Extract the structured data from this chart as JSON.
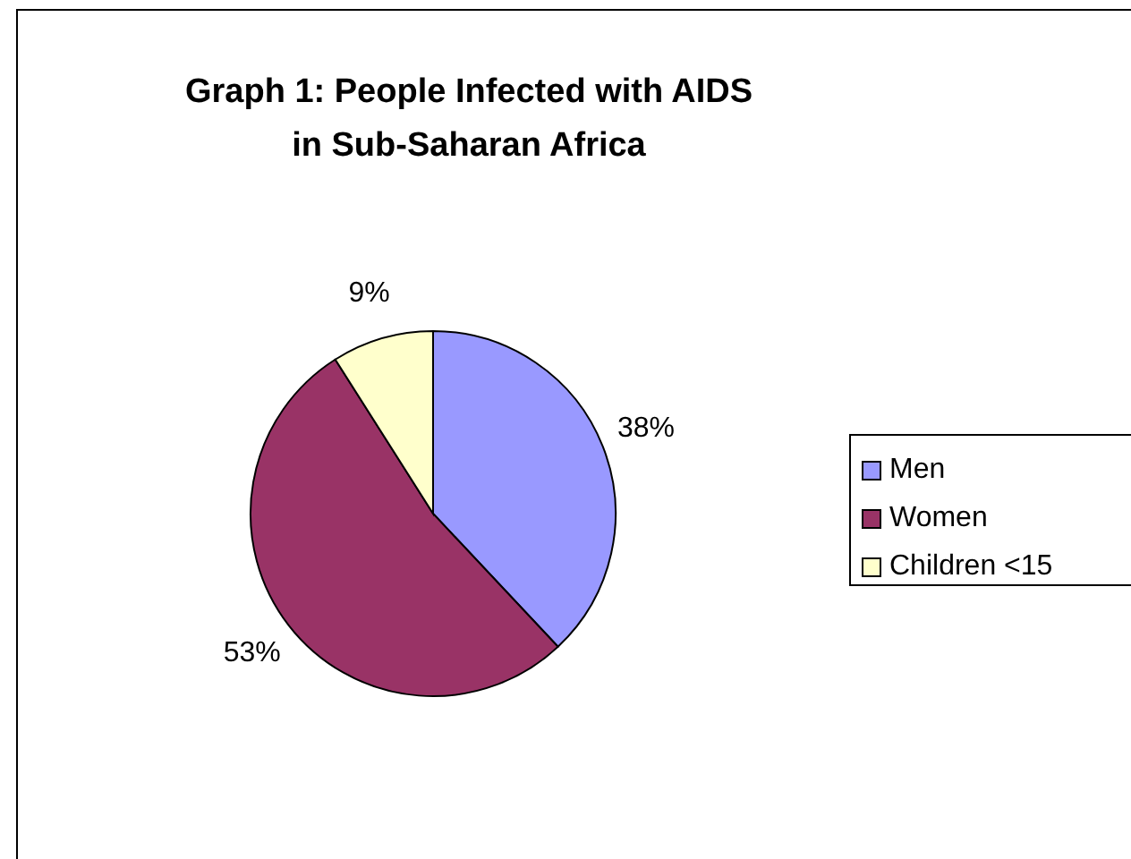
{
  "chart_data": {
    "type": "pie",
    "title": "Graph 1: People Infected with AIDS in Sub-Saharan Africa",
    "categories": [
      "Men",
      "Women",
      "Children <15"
    ],
    "values": [
      38,
      53,
      9
    ],
    "value_labels": [
      "38%",
      "53%",
      "9%"
    ],
    "colors": [
      "#9999ff",
      "#993366",
      "#ffffcc"
    ],
    "legend": "right"
  }
}
